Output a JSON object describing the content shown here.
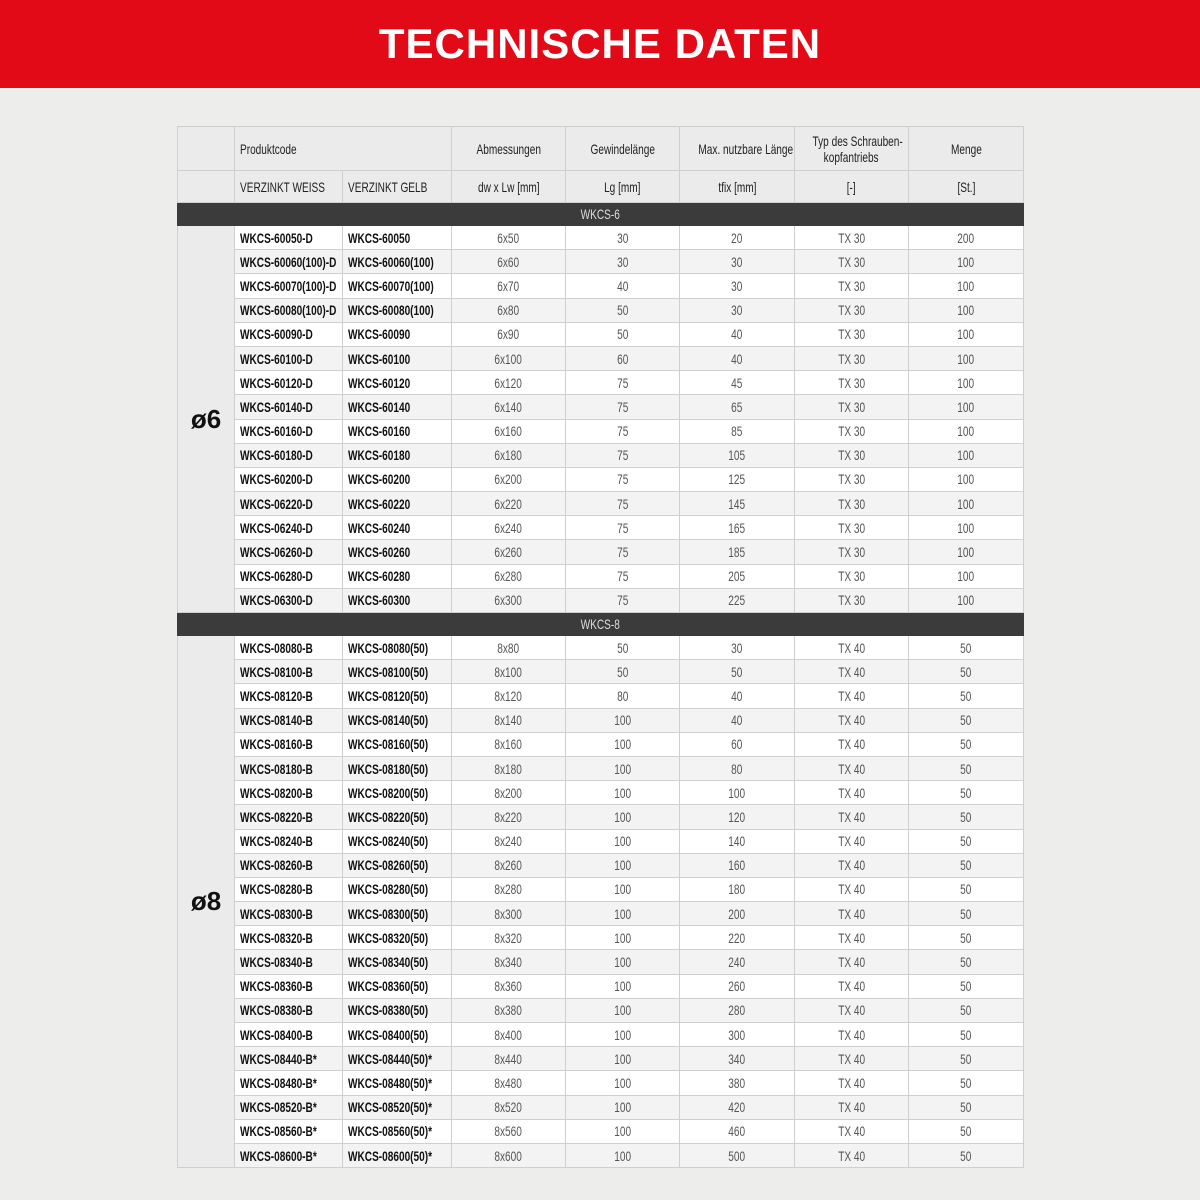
{
  "title": "TECHNISCHE DATEN",
  "header": {
    "produktcode": "Produktcode",
    "abmessungen": "Abmessungen",
    "gewindelaenge": "Gewindelänge",
    "max_laenge": "Max. nutzbare Länge",
    "typ_line1": "Typ des Schrauben-",
    "typ_line2": "kopfantriebs",
    "menge": "Menge",
    "weiss": "VERZINKT WEISS",
    "gelb": "VERZINKT GELB",
    "unit_abm": "dw x Lw [mm]",
    "unit_gew": "Lg [mm]",
    "unit_max": "tfix [mm]",
    "unit_typ": "[-]",
    "unit_menge": "[St.]"
  },
  "sections": [
    {
      "name": "WKCS-6",
      "diameter": "ø6",
      "rows": [
        [
          "WKCS-60050-D",
          "WKCS-60050",
          "6x50",
          "30",
          "20",
          "TX 30",
          "200"
        ],
        [
          "WKCS-60060(100)-D",
          "WKCS-60060(100)",
          "6x60",
          "30",
          "30",
          "TX 30",
          "100"
        ],
        [
          "WKCS-60070(100)-D",
          "WKCS-60070(100)",
          "6x70",
          "40",
          "30",
          "TX 30",
          "100"
        ],
        [
          "WKCS-60080(100)-D",
          "WKCS-60080(100)",
          "6x80",
          "50",
          "30",
          "TX 30",
          "100"
        ],
        [
          "WKCS-60090-D",
          "WKCS-60090",
          "6x90",
          "50",
          "40",
          "TX 30",
          "100"
        ],
        [
          "WKCS-60100-D",
          "WKCS-60100",
          "6x100",
          "60",
          "40",
          "TX 30",
          "100"
        ],
        [
          "WKCS-60120-D",
          "WKCS-60120",
          "6x120",
          "75",
          "45",
          "TX 30",
          "100"
        ],
        [
          "WKCS-60140-D",
          "WKCS-60140",
          "6x140",
          "75",
          "65",
          "TX 30",
          "100"
        ],
        [
          "WKCS-60160-D",
          "WKCS-60160",
          "6x160",
          "75",
          "85",
          "TX 30",
          "100"
        ],
        [
          "WKCS-60180-D",
          "WKCS-60180",
          "6x180",
          "75",
          "105",
          "TX 30",
          "100"
        ],
        [
          "WKCS-60200-D",
          "WKCS-60200",
          "6x200",
          "75",
          "125",
          "TX 30",
          "100"
        ],
        [
          "WKCS-06220-D",
          "WKCS-60220",
          "6x220",
          "75",
          "145",
          "TX 30",
          "100"
        ],
        [
          "WKCS-06240-D",
          "WKCS-60240",
          "6x240",
          "75",
          "165",
          "TX 30",
          "100"
        ],
        [
          "WKCS-06260-D",
          "WKCS-60260",
          "6x260",
          "75",
          "185",
          "TX 30",
          "100"
        ],
        [
          "WKCS-06280-D",
          "WKCS-60280",
          "6x280",
          "75",
          "205",
          "TX 30",
          "100"
        ],
        [
          "WKCS-06300-D",
          "WKCS-60300",
          "6x300",
          "75",
          "225",
          "TX 30",
          "100"
        ]
      ]
    },
    {
      "name": "WKCS-8",
      "diameter": "ø8",
      "rows": [
        [
          "WKCS-08080-B",
          "WKCS-08080(50)",
          "8x80",
          "50",
          "30",
          "TX 40",
          "50"
        ],
        [
          "WKCS-08100-B",
          "WKCS-08100(50)",
          "8x100",
          "50",
          "50",
          "TX 40",
          "50"
        ],
        [
          "WKCS-08120-B",
          "WKCS-08120(50)",
          "8x120",
          "80",
          "40",
          "TX 40",
          "50"
        ],
        [
          "WKCS-08140-B",
          "WKCS-08140(50)",
          "8x140",
          "100",
          "40",
          "TX 40",
          "50"
        ],
        [
          "WKCS-08160-B",
          "WKCS-08160(50)",
          "8x160",
          "100",
          "60",
          "TX 40",
          "50"
        ],
        [
          "WKCS-08180-B",
          "WKCS-08180(50)",
          "8x180",
          "100",
          "80",
          "TX 40",
          "50"
        ],
        [
          "WKCS-08200-B",
          "WKCS-08200(50)",
          "8x200",
          "100",
          "100",
          "TX 40",
          "50"
        ],
        [
          "WKCS-08220-B",
          "WKCS-08220(50)",
          "8x220",
          "100",
          "120",
          "TX 40",
          "50"
        ],
        [
          "WKCS-08240-B",
          "WKCS-08240(50)",
          "8x240",
          "100",
          "140",
          "TX 40",
          "50"
        ],
        [
          "WKCS-08260-B",
          "WKCS-08260(50)",
          "8x260",
          "100",
          "160",
          "TX 40",
          "50"
        ],
        [
          "WKCS-08280-B",
          "WKCS-08280(50)",
          "8x280",
          "100",
          "180",
          "TX 40",
          "50"
        ],
        [
          "WKCS-08300-B",
          "WKCS-08300(50)",
          "8x300",
          "100",
          "200",
          "TX 40",
          "50"
        ],
        [
          "WKCS-08320-B",
          "WKCS-08320(50)",
          "8x320",
          "100",
          "220",
          "TX 40",
          "50"
        ],
        [
          "WKCS-08340-B",
          "WKCS-08340(50)",
          "8x340",
          "100",
          "240",
          "TX 40",
          "50"
        ],
        [
          "WKCS-08360-B",
          "WKCS-08360(50)",
          "8x360",
          "100",
          "260",
          "TX 40",
          "50"
        ],
        [
          "WKCS-08380-B",
          "WKCS-08380(50)",
          "8x380",
          "100",
          "280",
          "TX 40",
          "50"
        ],
        [
          "WKCS-08400-B",
          "WKCS-08400(50)",
          "8x400",
          "100",
          "300",
          "TX 40",
          "50"
        ],
        [
          "WKCS-08440-B*",
          "WKCS-08440(50)*",
          "8x440",
          "100",
          "340",
          "TX 40",
          "50"
        ],
        [
          "WKCS-08480-B*",
          "WKCS-08480(50)*",
          "8x480",
          "100",
          "380",
          "TX 40",
          "50"
        ],
        [
          "WKCS-08520-B*",
          "WKCS-08520(50)*",
          "8x520",
          "100",
          "420",
          "TX 40",
          "50"
        ],
        [
          "WKCS-08560-B*",
          "WKCS-08560(50)*",
          "8x560",
          "100",
          "460",
          "TX 40",
          "50"
        ],
        [
          "WKCS-08600-B*",
          "WKCS-08600(50)*",
          "8x600",
          "100",
          "500",
          "TX 40",
          "50"
        ]
      ]
    }
  ]
}
